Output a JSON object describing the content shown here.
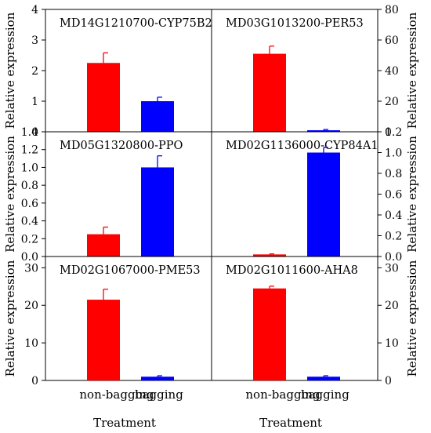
{
  "chart_data": [
    {
      "type": "bar",
      "title": "MD14G1210700-CYP75B2",
      "categories": [
        "non-bagging",
        "bagging"
      ],
      "values": [
        2.25,
        1.0
      ],
      "errors": [
        0.33,
        0.13
      ],
      "colors": [
        "#ff0000",
        "#0000ff"
      ],
      "ylabel": "Relative expression",
      "ylim": [
        0,
        4
      ],
      "yticks": [
        "0",
        "1",
        "2",
        "3",
        "4"
      ],
      "ytick_values": [
        0,
        1,
        2,
        3,
        4
      ],
      "yaxis_side": "left"
    },
    {
      "type": "bar",
      "title": "MD03G1013200-PER53",
      "categories": [
        "non-bagging",
        "bagging"
      ],
      "values": [
        51,
        1
      ],
      "errors": [
        5,
        0.5
      ],
      "colors": [
        "#ff0000",
        "#0000ff"
      ],
      "ylabel": "Relative expression",
      "ylim": [
        0,
        80
      ],
      "yticks": [
        "0",
        "20",
        "40",
        "60",
        "80"
      ],
      "ytick_values": [
        0,
        20,
        40,
        60,
        80
      ],
      "yaxis_side": "right"
    },
    {
      "type": "bar",
      "title": "MD05G1320800-PPO",
      "categories": [
        "non-bagging",
        "bagging"
      ],
      "values": [
        0.25,
        1.0
      ],
      "errors": [
        0.08,
        0.13
      ],
      "colors": [
        "#ff0000",
        "#0000ff"
      ],
      "ylabel": "Relative expression",
      "ylim": [
        0,
        1.4
      ],
      "yticks": [
        "0.0",
        "0.2",
        "0.4",
        "0.6",
        "0.8",
        "1.0",
        "1.2",
        "1.4"
      ],
      "ytick_values": [
        0,
        0.2,
        0.4,
        0.6,
        0.8,
        1.0,
        1.2,
        1.4
      ],
      "yaxis_side": "left"
    },
    {
      "type": "bar",
      "title": "MD02G1136000-CYP84A1",
      "categories": [
        "non-bagging",
        "bagging"
      ],
      "values": [
        0.02,
        1.0
      ],
      "errors": [
        0.005,
        0.05
      ],
      "colors": [
        "#ff0000",
        "#0000ff"
      ],
      "ylabel": "Relative expression",
      "ylim": [
        0,
        1.2
      ],
      "yticks": [
        "0.0",
        "0.2",
        "0.4",
        "0.6",
        "0.8",
        "1.0",
        "1.2"
      ],
      "ytick_values": [
        0,
        0.2,
        0.4,
        0.6,
        0.8,
        1.0,
        1.2
      ],
      "yaxis_side": "right"
    },
    {
      "type": "bar",
      "title": "MD02G1067000-PME53",
      "categories": [
        "non-bagging",
        "bagging"
      ],
      "values": [
        21.5,
        1.0
      ],
      "errors": [
        2.8,
        0.25
      ],
      "colors": [
        "#ff0000",
        "#0000ff"
      ],
      "ylabel": "Relative expression",
      "ylim": [
        0,
        33
      ],
      "yticks": [
        "0",
        "10",
        "20",
        "30"
      ],
      "ytick_values": [
        0,
        10,
        20,
        30
      ],
      "yaxis_side": "left",
      "xlabel": "Treatment"
    },
    {
      "type": "bar",
      "title": "MD02G1011600-AHA8",
      "categories": [
        "non-bagging",
        "bagging"
      ],
      "values": [
        24.5,
        1.0
      ],
      "errors": [
        0.6,
        0.25
      ],
      "colors": [
        "#ff0000",
        "#0000ff"
      ],
      "ylabel": "Relative expression",
      "ylim": [
        0,
        33
      ],
      "yticks": [
        "0",
        "10",
        "20",
        "30"
      ],
      "ytick_values": [
        0,
        10,
        20,
        30
      ],
      "yaxis_side": "right",
      "xlabel": "Treatment"
    }
  ]
}
